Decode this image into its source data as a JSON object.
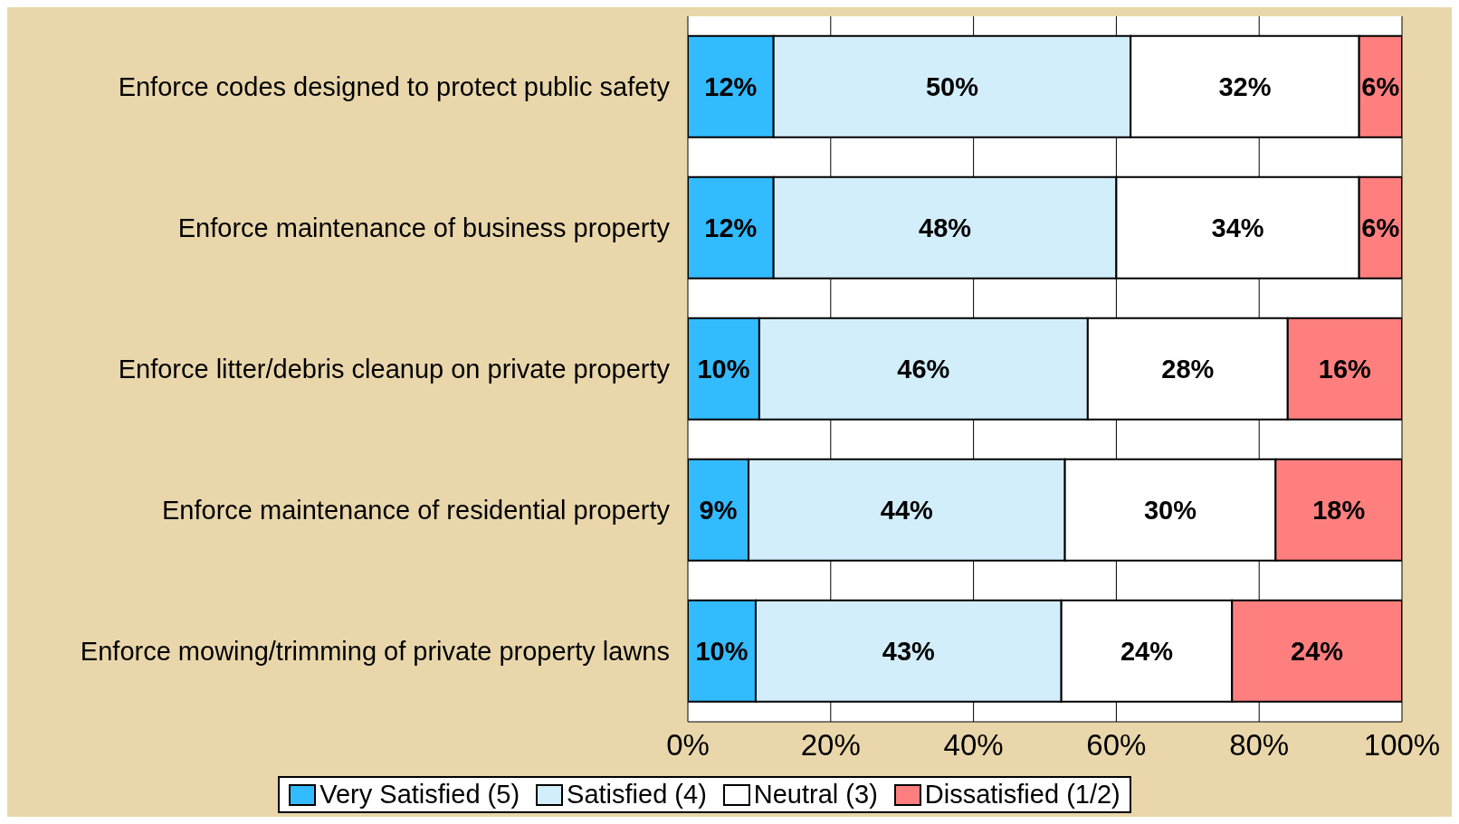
{
  "chart_data": {
    "type": "bar",
    "orientation": "horizontal",
    "stacked": true,
    "categories": [
      "Enforce codes designed to protect public safety",
      "Enforce maintenance of business property",
      "Enforce litter/debris cleanup on private property",
      "Enforce maintenance of residential property",
      "Enforce mowing/trimming of private property lawns"
    ],
    "series": [
      {
        "name": "Very Satisfied (5)",
        "color": "#33bbff",
        "values": [
          12,
          12,
          10,
          8.5,
          9.5
        ],
        "value_labels": [
          "12%",
          "12%",
          "10%",
          "9%",
          "10%"
        ]
      },
      {
        "name": "Satisfied (4)",
        "color": "#d2eefb",
        "values": [
          50,
          48,
          46,
          44.3,
          42.8
        ],
        "value_labels": [
          "50%",
          "48%",
          "46%",
          "44%",
          "43%"
        ]
      },
      {
        "name": "Neutral (3)",
        "color": "#ffffff",
        "values": [
          32,
          34,
          28,
          29.5,
          23.9
        ],
        "value_labels": [
          "32%",
          "34%",
          "28%",
          "30%",
          "24%"
        ]
      },
      {
        "name": "Dissatisfied (1/2)",
        "color": "#ff7f7f",
        "values": [
          6,
          6,
          16,
          17.7,
          23.8
        ],
        "value_labels": [
          "6%",
          "6%",
          "16%",
          "18%",
          "24%"
        ]
      }
    ],
    "xlim": [
      0,
      100
    ],
    "xticks": [
      {
        "value": 0,
        "label": "0%"
      },
      {
        "value": 20,
        "label": "20%"
      },
      {
        "value": 40,
        "label": "40%"
      },
      {
        "value": 60,
        "label": "60%"
      },
      {
        "value": 80,
        "label": "80%"
      },
      {
        "value": 100,
        "label": "100%"
      }
    ],
    "grid": "x",
    "legend": "bottom"
  }
}
